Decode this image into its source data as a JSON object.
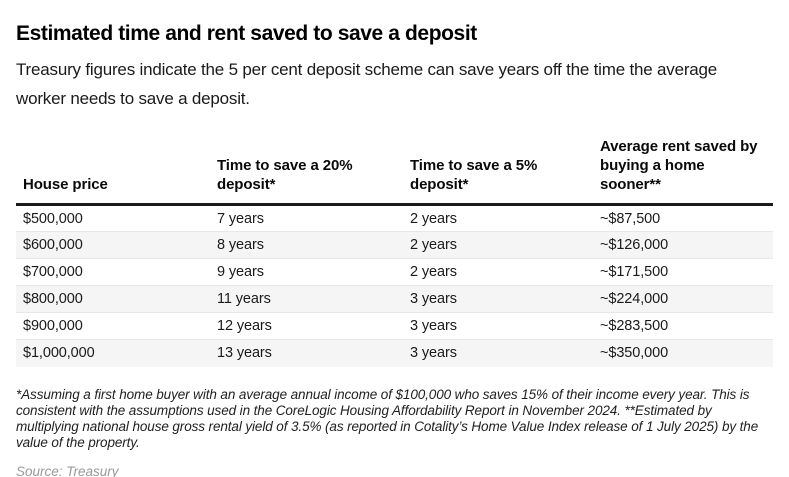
{
  "header": {
    "title": "Estimated time and rent saved to save a deposit",
    "subtitle": "Treasury figures indicate the 5 per cent deposit scheme can save years off the time the average worker needs to save a deposit."
  },
  "table": {
    "columns": [
      "House price",
      "Time to save a 20% deposit*",
      "Time to save a 5% deposit*",
      "Average rent saved by buying a home sooner**"
    ],
    "rows": [
      [
        "$500,000",
        "7 years",
        "2 years",
        "~$87,500"
      ],
      [
        "$600,000",
        "8 years",
        "2 years",
        "~$126,000"
      ],
      [
        "$700,000",
        "9 years",
        "2 years",
        "~$171,500"
      ],
      [
        "$800,000",
        "11 years",
        "3 years",
        "~$224,000"
      ],
      [
        "$900,000",
        "12 years",
        "3 years",
        "~$283,500"
      ],
      [
        "$1,000,000",
        "13 years",
        "3 years",
        "~$350,000"
      ]
    ]
  },
  "footnote": "*Assuming a first home buyer with an average annual income of $100,000 who saves 15% of their income every year. This is consistent with the assumptions used in the CoreLogic Housing Affordability Report in November 2024. **Estimated by multiplying national house gross rental yield of 3.5% (as reported in Cotality’s Home Value Index release of 1 July 2025) by the value of the property.",
  "source": "Source: Treasury",
  "colors": {
    "text": "#111111",
    "stripe": "#f5f5f5",
    "header_rule": "#1a1a1a",
    "row_border": "#e8e8e8",
    "source_text": "#999999"
  },
  "chart_data": {
    "type": "table",
    "title": "Estimated time and rent saved to save a deposit",
    "subtitle": "Treasury figures indicate the 5 per cent deposit scheme can save years off the time the average worker needs to save a deposit.",
    "columns": [
      "House price",
      "Time to save a 20% deposit*",
      "Time to save a 5% deposit*",
      "Average rent saved by buying a home sooner**"
    ],
    "house_prices": [
      "$500,000",
      "$600,000",
      "$700,000",
      "$800,000",
      "$900,000",
      "$1,000,000"
    ],
    "years_to_save_20pct_deposit": [
      7,
      8,
      9,
      11,
      12,
      13
    ],
    "years_to_save_5pct_deposit": [
      2,
      2,
      2,
      3,
      3,
      3
    ],
    "avg_rent_saved": [
      "~$87,500",
      "~$126,000",
      "~$171,500",
      "~$224,000",
      "~$283,500",
      "~$350,000"
    ],
    "source": "Source: Treasury"
  }
}
